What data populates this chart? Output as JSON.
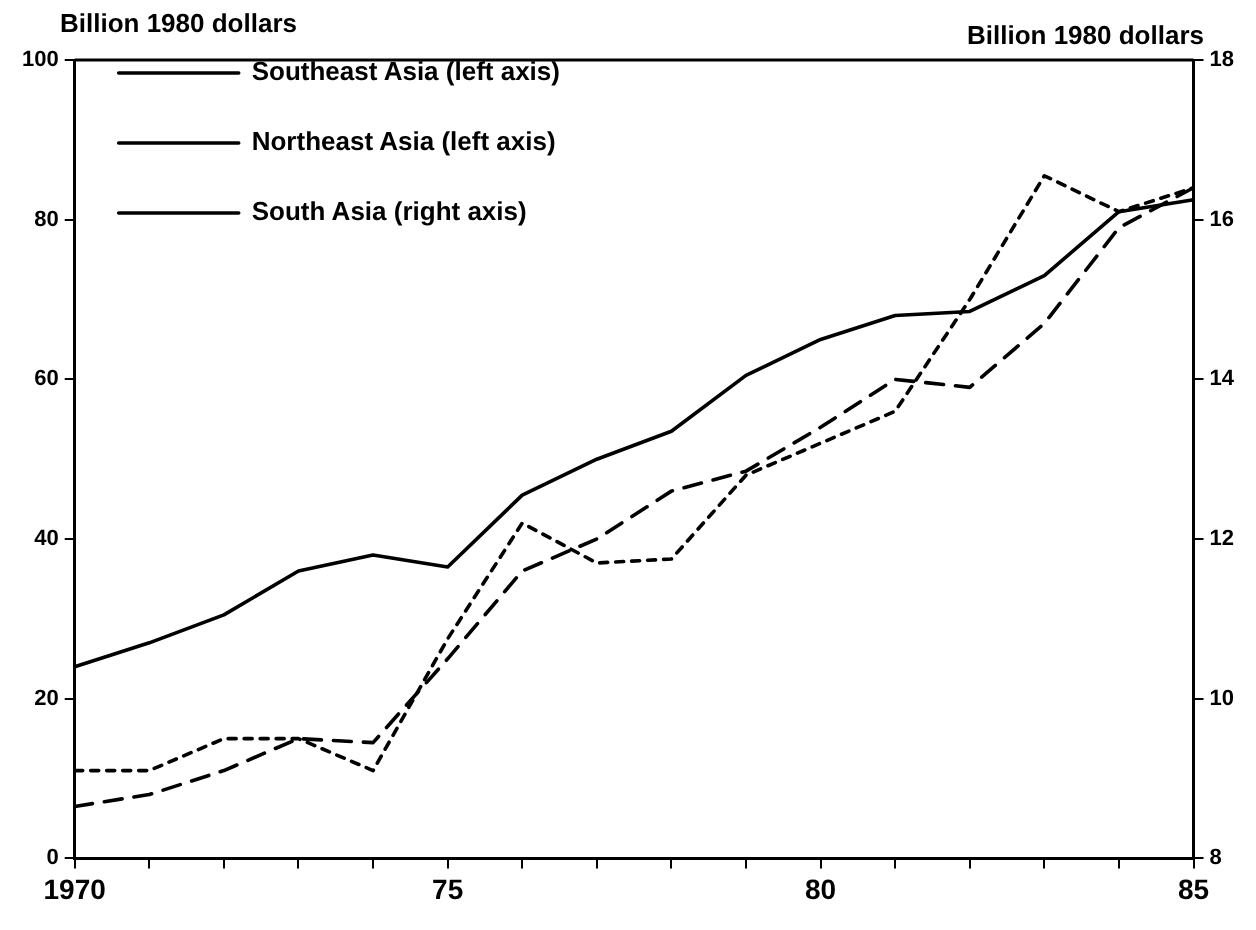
{
  "chart_data": {
    "type": "line",
    "ylabel": "Billion 1980 dollars",
    "y2label": "Billion 1980 dollars",
    "x": [
      1970,
      1971,
      1972,
      1973,
      1974,
      1975,
      1976,
      1977,
      1978,
      1979,
      1980,
      1981,
      1982,
      1983,
      1984,
      1985
    ],
    "series": [
      {
        "name": "Southeast Asia (left axis)",
        "color": "#000000",
        "line_style": "solid",
        "axis": "y",
        "values": [
          24,
          27,
          30.5,
          36,
          38,
          36.5,
          45.5,
          50,
          53.5,
          60.5,
          65,
          68,
          68.5,
          73,
          81,
          82.5
        ]
      },
      {
        "name": "Northeast Asia (left axis)",
        "color": "#000000",
        "line_style": "dashed",
        "axis": "y",
        "values": [
          6.5,
          8,
          11,
          15,
          14.5,
          25,
          36,
          40,
          46,
          48.5,
          54,
          60,
          59,
          67,
          79,
          84
        ]
      },
      {
        "name": "South Asia (right axis)",
        "color": "#000000",
        "line_style": "dotted",
        "axis": "y2",
        "values": [
          9.1,
          9.1,
          9.5,
          9.5,
          9.1,
          10.75,
          12.2,
          11.7,
          11.75,
          12.8,
          13.2,
          13.6,
          15,
          16.55,
          16.1,
          16.4
        ]
      }
    ],
    "xlim": [
      1970,
      1985
    ],
    "xticks": [
      1970,
      {
        "value": 1971,
        "label": null
      },
      {
        "value": 1972,
        "label": null
      },
      {
        "value": 1973,
        "label": null
      },
      {
        "value": 1974,
        "label": null
      },
      {
        "value": 1975,
        "label": "75"
      },
      {
        "value": 1976,
        "label": null
      },
      {
        "value": 1977,
        "label": null
      },
      {
        "value": 1978,
        "label": null
      },
      {
        "value": 1979,
        "label": null
      },
      {
        "value": 1980,
        "label": "80"
      },
      {
        "value": 1981,
        "label": null
      },
      {
        "value": 1982,
        "label": null
      },
      {
        "value": 1983,
        "label": null
      },
      {
        "value": 1984,
        "label": null
      },
      {
        "value": 1985,
        "label": "85"
      }
    ],
    "ylim": [
      0,
      100
    ],
    "yticks": [
      0,
      20,
      40,
      60,
      80,
      100
    ],
    "y2lim": [
      8,
      18
    ],
    "y2ticks": [
      8,
      10,
      12,
      14,
      16,
      18
    ],
    "grid": false,
    "legend": "top left",
    "marker": "none"
  }
}
